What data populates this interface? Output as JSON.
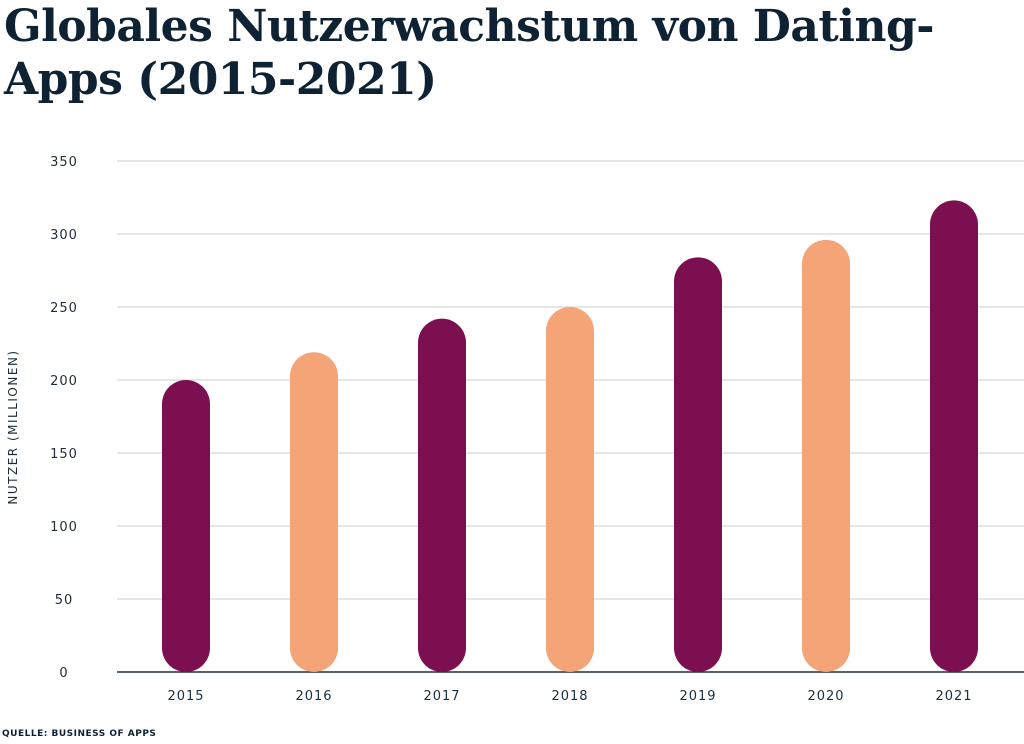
{
  "chart_data": {
    "type": "bar",
    "title": "Globales Nutzerwachstum von Dating-Apps (2015-2021)",
    "xlabel": "",
    "ylabel": "NUTZER (MILLIONEN)",
    "categories": [
      "2015",
      "2016",
      "2017",
      "2018",
      "2019",
      "2020",
      "2021"
    ],
    "values": [
      200,
      219,
      242,
      250,
      284,
      296,
      323
    ],
    "bar_colors": [
      "#7c0f50",
      "#f4a476",
      "#7c0f50",
      "#f4a476",
      "#7c0f50",
      "#f4a476",
      "#7c0f50"
    ],
    "ylim": [
      0,
      350
    ],
    "yticks": [
      0,
      50,
      100,
      150,
      200,
      250,
      300,
      350
    ],
    "grid": true,
    "legend": "none",
    "source": "QUELLE: BUSINESS OF APPS"
  }
}
